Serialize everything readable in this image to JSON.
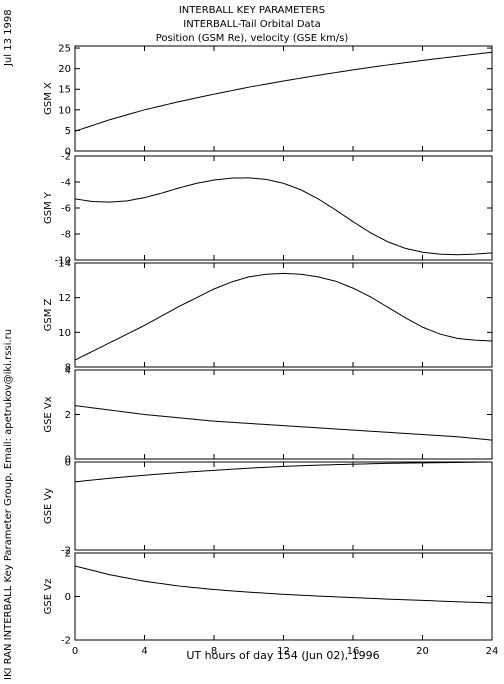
{
  "header": {
    "line1": "INTERBALL KEY PARAMETERS",
    "line2": "INTERBALL-Tail Orbital Data",
    "line3": "Position (GSM Re), velocity (GSE km/s)"
  },
  "date_stamp": "Jul 13 1998",
  "credit": "IKI RAN INTERBALL Key Parameter Group, Email: apetrukov@iki.rssi.ru",
  "chart_data": {
    "type": "line",
    "xlabel": "UT hours of day 154 (Jun 02), 1996",
    "xlim": [
      0,
      24
    ],
    "xticks": [
      0,
      4,
      8,
      12,
      16,
      20,
      24
    ],
    "panels": [
      {
        "ylabel": "GSM X",
        "ylim": [
          0,
          25.5
        ],
        "yticks": [
          0,
          5,
          10,
          15,
          20,
          25
        ],
        "x": [
          0,
          2,
          4,
          6,
          8,
          10,
          12,
          14,
          16,
          18,
          20,
          22,
          24
        ],
        "values": [
          4.8,
          7.6,
          10.0,
          12.0,
          13.8,
          15.5,
          17.0,
          18.4,
          19.7,
          20.9,
          22.0,
          23.0,
          24.0
        ]
      },
      {
        "ylabel": "GSM Y",
        "ylim": [
          -10,
          -2
        ],
        "yticks": [
          -10,
          -8,
          -6,
          -4,
          -2
        ],
        "x": [
          0,
          1,
          2,
          3,
          4,
          5,
          6,
          7,
          8,
          9,
          10,
          11,
          12,
          13,
          14,
          15,
          16,
          17,
          18,
          19,
          20,
          21,
          22,
          23,
          24
        ],
        "values": [
          -5.3,
          -5.5,
          -5.55,
          -5.45,
          -5.2,
          -4.85,
          -4.45,
          -4.1,
          -3.85,
          -3.7,
          -3.68,
          -3.8,
          -4.1,
          -4.6,
          -5.3,
          -6.15,
          -7.05,
          -7.9,
          -8.6,
          -9.1,
          -9.4,
          -9.55,
          -9.6,
          -9.55,
          -9.45
        ]
      },
      {
        "ylabel": "GSM Z",
        "ylim": [
          8,
          14
        ],
        "yticks": [
          8,
          10,
          12,
          14
        ],
        "x": [
          0,
          1,
          2,
          3,
          4,
          5,
          6,
          7,
          8,
          9,
          10,
          11,
          12,
          13,
          14,
          15,
          16,
          17,
          18,
          19,
          20,
          21,
          22,
          23,
          24
        ],
        "values": [
          8.4,
          8.9,
          9.4,
          9.9,
          10.4,
          10.95,
          11.5,
          12.0,
          12.5,
          12.9,
          13.2,
          13.35,
          13.4,
          13.35,
          13.2,
          12.95,
          12.55,
          12.05,
          11.45,
          10.85,
          10.3,
          9.9,
          9.65,
          9.55,
          9.5
        ]
      },
      {
        "ylabel": "GSE Vx",
        "ylim": [
          0,
          4
        ],
        "yticks": [
          0,
          2,
          4
        ],
        "x": [
          0,
          2,
          4,
          6,
          8,
          10,
          12,
          14,
          16,
          18,
          20,
          22,
          24
        ],
        "values": [
          2.4,
          2.2,
          2.0,
          1.85,
          1.7,
          1.6,
          1.5,
          1.4,
          1.3,
          1.2,
          1.1,
          1.0,
          0.85
        ]
      },
      {
        "ylabel": "GSE Vy",
        "ylim": [
          -2,
          0
        ],
        "yticks": [
          -2,
          0
        ],
        "x": [
          0,
          2,
          4,
          6,
          8,
          10,
          12,
          14,
          16,
          18,
          20,
          22,
          24
        ],
        "values": [
          -0.45,
          -0.37,
          -0.3,
          -0.24,
          -0.19,
          -0.14,
          -0.1,
          -0.07,
          -0.05,
          -0.03,
          -0.02,
          -0.01,
          0.0
        ]
      },
      {
        "ylabel": "GSE Vz",
        "ylim": [
          -2,
          2
        ],
        "yticks": [
          -2,
          0,
          2
        ],
        "x": [
          0,
          2,
          4,
          6,
          8,
          10,
          12,
          14,
          16,
          18,
          20,
          22,
          24
        ],
        "values": [
          1.4,
          1.0,
          0.7,
          0.48,
          0.32,
          0.2,
          0.1,
          0.02,
          -0.05,
          -0.12,
          -0.18,
          -0.24,
          -0.3
        ]
      }
    ]
  }
}
